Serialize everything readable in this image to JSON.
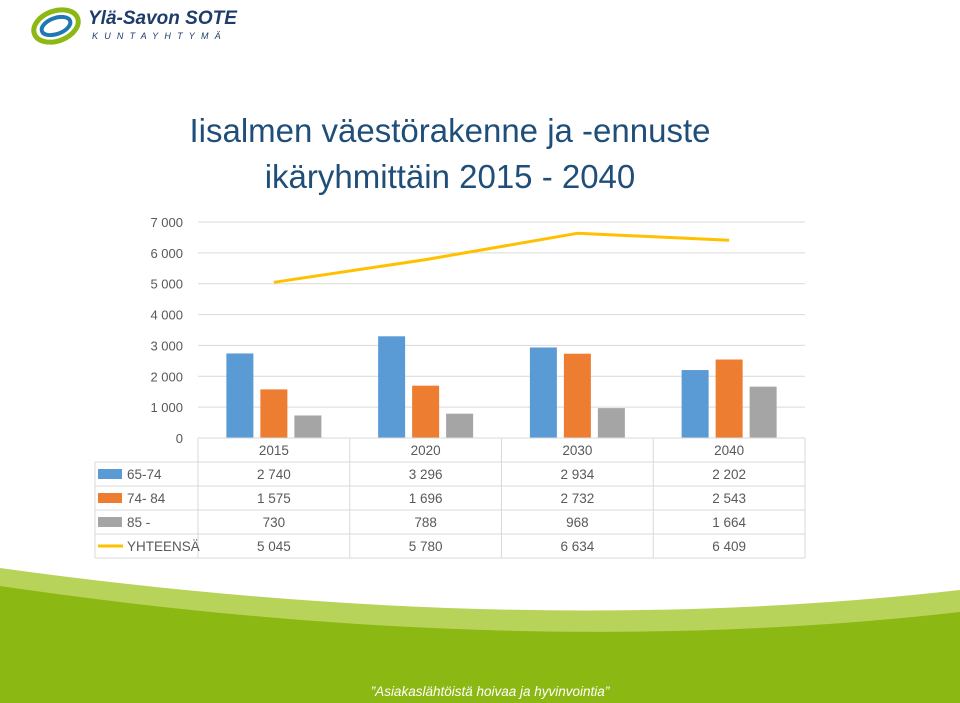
{
  "logo": {
    "name": "Ylä-Savon SOTE",
    "subtitle": "KUNTAYHTYMÄ"
  },
  "slide": {
    "title_line1": "Iisalmen väestörakenne ja -ennuste",
    "title_line2": "ikäryhmittäin 2015 - 2040",
    "slogan": "”Asiakaslähtöistä hoivaa ja hyvinvointia”"
  },
  "colors": {
    "title": "#1f4e79",
    "series_65_74": "#5b9bd5",
    "series_74_84": "#ed7d31",
    "series_85": "#a5a5a5",
    "series_total": "#ffc000",
    "bottom_green": "#8cb814",
    "bottom_light_green": "#b8d35a"
  },
  "chart_data": {
    "type": "bar",
    "categories": [
      "2015",
      "2020",
      "2030",
      "2040"
    ],
    "ylim": [
      0,
      7000
    ],
    "yticks": [
      "0",
      "1 000",
      "2 000",
      "3 000",
      "4 000",
      "5 000",
      "6 000",
      "7 000"
    ],
    "grid": true,
    "legend_position": "data-table",
    "series": [
      {
        "name": "65-74",
        "type": "bar",
        "values": [
          2740,
          3296,
          2934,
          2202
        ],
        "labels": [
          "2 740",
          "3 296",
          "2 934",
          "2 202"
        ]
      },
      {
        "name": "74- 84",
        "type": "bar",
        "values": [
          1575,
          1696,
          2732,
          2543
        ],
        "labels": [
          "1 575",
          "1 696",
          "2 732",
          "2 543"
        ]
      },
      {
        "name": "85 -",
        "type": "bar",
        "values": [
          730,
          788,
          968,
          1664
        ],
        "labels": [
          "730",
          "788",
          "968",
          "1 664"
        ]
      },
      {
        "name": "YHTEENSÄ",
        "type": "line",
        "values": [
          5045,
          5780,
          6634,
          6409
        ],
        "labels": [
          "5 045",
          "5 780",
          "6 634",
          "6 409"
        ]
      }
    ]
  }
}
